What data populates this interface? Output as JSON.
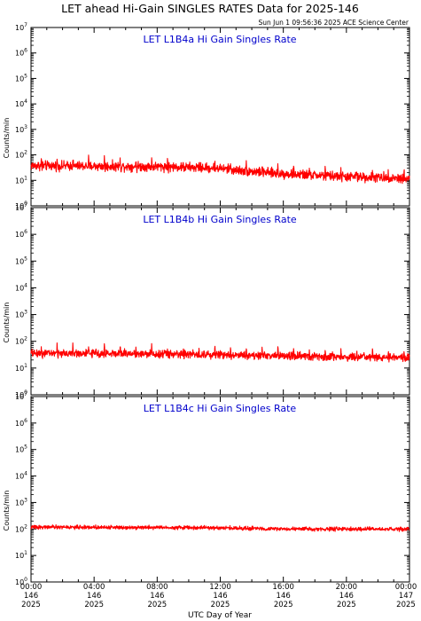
{
  "header": {
    "title": "LET ahead Hi-Gain SINGLES RATES Data for 2025-146",
    "timestamp": "Sun Jun  1 09:56:36 2025 ACE Science Center"
  },
  "colors": {
    "series": "#ff0000",
    "panel_title": "#0000cc",
    "axis": "#000000"
  },
  "chart_data": [
    {
      "type": "line",
      "title": "LET L1B4a Hi Gain Singles Rate",
      "ylabel": "Counts/min",
      "yscale": "log",
      "ylim": [
        1,
        10000000
      ],
      "xlim": [
        0,
        24
      ],
      "grid": false,
      "baseline": {
        "x": [
          0,
          4,
          8,
          12,
          13,
          16,
          20,
          24
        ],
        "y": [
          38,
          36,
          35,
          30,
          25,
          18,
          14,
          12
        ]
      },
      "noise_dex": 0.09,
      "spike_interval_h": 1.0,
      "spike_factor": 1.9
    },
    {
      "type": "line",
      "title": "LET L1B4b Hi Gain Singles Rate",
      "ylabel": "Counts/min",
      "yscale": "log",
      "ylim": [
        1,
        10000000
      ],
      "xlim": [
        0,
        24
      ],
      "grid": false,
      "baseline": {
        "x": [
          0,
          6,
          12,
          18,
          24
        ],
        "y": [
          36,
          35,
          32,
          27,
          24
        ]
      },
      "noise_dex": 0.07,
      "spike_interval_h": 1.0,
      "spike_factor": 1.8
    },
    {
      "type": "line",
      "title": "LET L1B4c Hi Gain Singles Rate",
      "ylabel": "Counts/min",
      "yscale": "log",
      "ylim": [
        1,
        10000000
      ],
      "xlim": [
        0,
        24
      ],
      "grid": false,
      "baseline": {
        "x": [
          0,
          8,
          12,
          16,
          24
        ],
        "y": [
          118,
          115,
          110,
          100,
          98
        ]
      },
      "noise_dex": 0.035,
      "spike_interval_h": 0,
      "spike_factor": 1.0
    }
  ],
  "y_ticks": [
    {
      "value": 1,
      "base": "10",
      "exp": "0"
    },
    {
      "value": 10,
      "base": "10",
      "exp": "1"
    },
    {
      "value": 100,
      "base": "10",
      "exp": "2"
    },
    {
      "value": 1000,
      "base": "10",
      "exp": "3"
    },
    {
      "value": 10000,
      "base": "10",
      "exp": "4"
    },
    {
      "value": 100000,
      "base": "10",
      "exp": "5"
    },
    {
      "value": 1000000,
      "base": "10",
      "exp": "6"
    },
    {
      "value": 10000000,
      "base": "10",
      "exp": "7"
    }
  ],
  "x_axis": {
    "label": "UTC Day of Year",
    "ticks": [
      {
        "hour": 0,
        "time": "00:00",
        "doy": "146",
        "year": "2025"
      },
      {
        "hour": 4,
        "time": "04:00",
        "doy": "146",
        "year": "2025"
      },
      {
        "hour": 8,
        "time": "08:00",
        "doy": "146",
        "year": "2025"
      },
      {
        "hour": 12,
        "time": "12:00",
        "doy": "146",
        "year": "2025"
      },
      {
        "hour": 16,
        "time": "16:00",
        "doy": "146",
        "year": "2025"
      },
      {
        "hour": 20,
        "time": "20:00",
        "doy": "146",
        "year": "2025"
      },
      {
        "hour": 24,
        "time": "00:00",
        "doy": "147",
        "year": "2025"
      }
    ]
  }
}
